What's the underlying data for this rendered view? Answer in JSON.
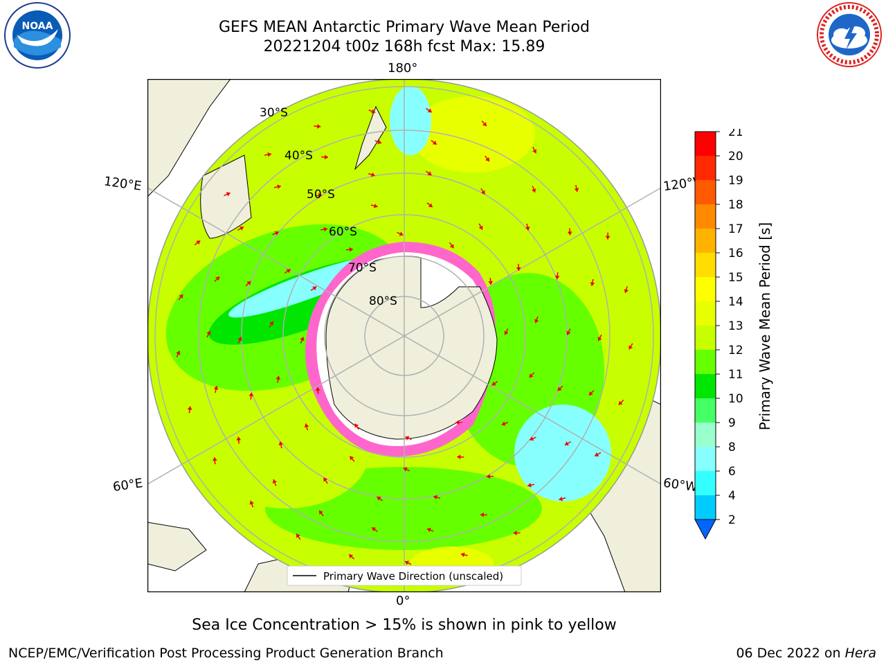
{
  "header": {
    "title_line1": "GEFS MEAN Antarctic Primary Wave Mean Period",
    "title_line2": "20221204 t00z 168h fcst   Max: 15.89"
  },
  "logos": {
    "left": "noaa-logo",
    "left_text": "NOAA",
    "right": "nws-logo",
    "right_text": "NATIONAL WEATHER SERVICE"
  },
  "map": {
    "meridian_labels": {
      "top": "180°",
      "bottom": "0°",
      "upper_left": "120°E",
      "upper_right": "120°W",
      "lower_left": "60°E",
      "lower_right": "60°W"
    },
    "latitude_labels": [
      "30°S",
      "40°S",
      "50°S",
      "60°S",
      "70°S",
      "80°S"
    ],
    "legend_label": "Primary Wave Direction (unscaled)"
  },
  "colorbar": {
    "label": "Primary Wave Mean Period [s]",
    "ticks": [
      "21",
      "20",
      "19",
      "18",
      "17",
      "16",
      "15",
      "14",
      "13",
      "12",
      "11",
      "10",
      "9",
      "8",
      "6",
      "4",
      "2"
    ],
    "colors": [
      "#ff0000",
      "#ff2a00",
      "#ff5a00",
      "#ff8a00",
      "#ffb300",
      "#ffdd00",
      "#ffff00",
      "#e8ff00",
      "#c8ff00",
      "#66ff00",
      "#00e600",
      "#44ff66",
      "#99ffcc",
      "#88ffff",
      "#33ffff",
      "#00ccff",
      "#0066ff"
    ]
  },
  "caption": "Sea Ice Concentration > 15% is shown in pink to yellow",
  "footer": {
    "left": "NCEP/EMC/Verification Post Processing Product Generation Branch",
    "right_date": "06 Dec 2022 on ",
    "right_machine": "Hera"
  }
}
